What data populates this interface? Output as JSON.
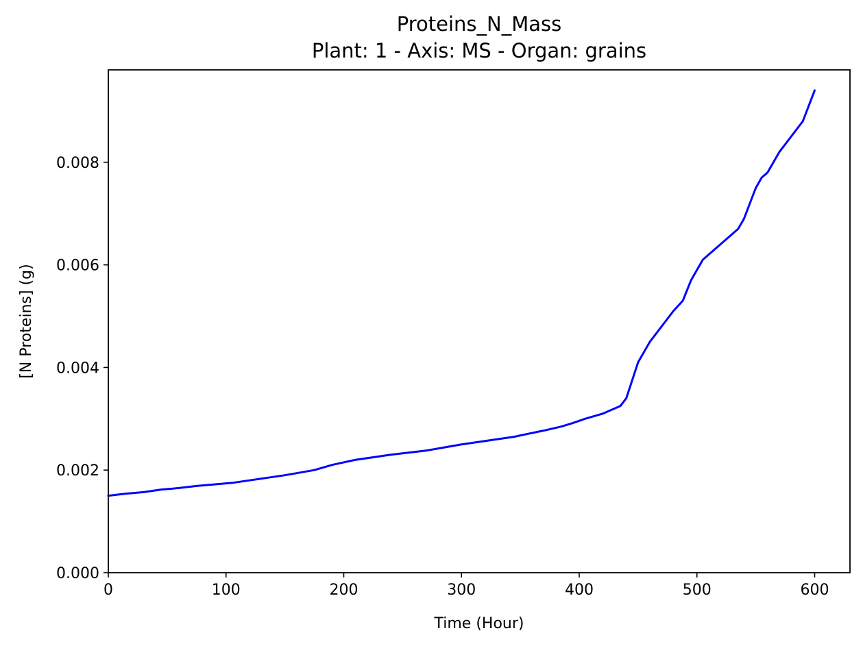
{
  "chart_data": {
    "type": "line",
    "title": "Proteins_N_Mass",
    "subtitle": "Plant: 1 - Axis: MS - Organ: grains",
    "xlabel": "Time (Hour)",
    "ylabel": "[N Proteins] (g)",
    "xlim": [
      0,
      630
    ],
    "ylim": [
      0,
      0.0098
    ],
    "xticks": [
      0,
      100,
      200,
      300,
      400,
      500,
      600
    ],
    "xtick_labels": [
      "0",
      "100",
      "200",
      "300",
      "400",
      "500",
      "600"
    ],
    "yticks": [
      0,
      0.002,
      0.004,
      0.006,
      0.008
    ],
    "ytick_labels": [
      "0.000",
      "0.002",
      "0.004",
      "0.006",
      "0.008"
    ],
    "grid": false,
    "series": [
      {
        "color": "#0000ff",
        "x": [
          0,
          15,
          30,
          45,
          60,
          75,
          90,
          105,
          120,
          135,
          150,
          165,
          175,
          190,
          200,
          210,
          225,
          240,
          255,
          270,
          285,
          300,
          315,
          330,
          345,
          355,
          370,
          385,
          395,
          405,
          420,
          435,
          440,
          450,
          460,
          470,
          480,
          488,
          495,
          500,
          505,
          510,
          520,
          530,
          535,
          540,
          545,
          550,
          555,
          560,
          570,
          580,
          590,
          600
        ],
        "y": [
          0.0015,
          0.00154,
          0.00157,
          0.00162,
          0.00165,
          0.00169,
          0.00172,
          0.00175,
          0.0018,
          0.00185,
          0.0019,
          0.00196,
          0.002,
          0.0021,
          0.00215,
          0.0022,
          0.00225,
          0.0023,
          0.00234,
          0.00238,
          0.00244,
          0.0025,
          0.00255,
          0.0026,
          0.00265,
          0.0027,
          0.00277,
          0.00285,
          0.00292,
          0.003,
          0.0031,
          0.00325,
          0.0034,
          0.0041,
          0.0045,
          0.0048,
          0.0051,
          0.0053,
          0.0057,
          0.0059,
          0.0061,
          0.0062,
          0.0064,
          0.0066,
          0.0067,
          0.0069,
          0.0072,
          0.0075,
          0.0077,
          0.0078,
          0.0082,
          0.0085,
          0.0088,
          0.0094
        ]
      }
    ]
  }
}
